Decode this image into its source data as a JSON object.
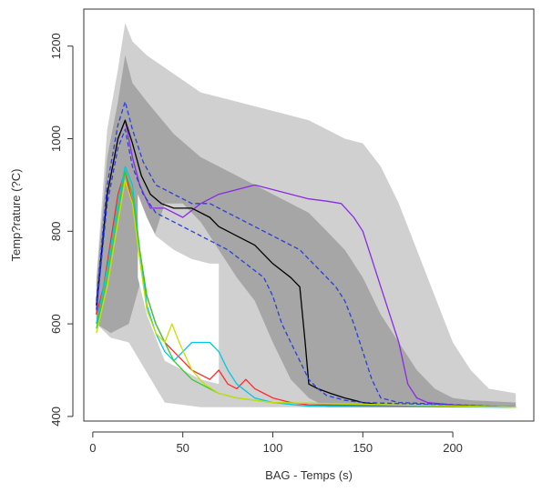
{
  "chart_data": {
    "type": "line",
    "title": "",
    "xlabel": "BAG - Temps (s)",
    "ylabel": "Temp?rature (?C)",
    "xlim": [
      -5,
      245
    ],
    "ylim": [
      390,
      1280
    ],
    "x_ticks": [
      0,
      50,
      100,
      150,
      200
    ],
    "y_ticks": [
      400,
      600,
      800,
      1000,
      1200
    ],
    "x_tick_labels": [
      "0",
      "50",
      "100",
      "150",
      "200"
    ],
    "y_tick_labels": [
      "400",
      "600",
      "800",
      "1000",
      "1200"
    ],
    "grid": false,
    "legend": "none",
    "bands": [
      {
        "color": "#d0d0d0",
        "upper": [
          [
            2,
            700
          ],
          [
            8,
            1020
          ],
          [
            14,
            1150
          ],
          [
            18,
            1250
          ],
          [
            22,
            1210
          ],
          [
            30,
            1180
          ],
          [
            45,
            1140
          ],
          [
            60,
            1100
          ],
          [
            80,
            1080
          ],
          [
            100,
            1060
          ],
          [
            120,
            1040
          ],
          [
            140,
            1000
          ],
          [
            150,
            990
          ],
          [
            160,
            940
          ],
          [
            170,
            860
          ],
          [
            180,
            760
          ],
          [
            190,
            660
          ],
          [
            200,
            560
          ],
          [
            210,
            500
          ],
          [
            220,
            460
          ],
          [
            235,
            450
          ]
        ],
        "lower": [
          [
            235,
            420
          ],
          [
            220,
            420
          ],
          [
            200,
            420
          ],
          [
            180,
            420
          ],
          [
            160,
            420
          ],
          [
            150,
            420
          ],
          [
            140,
            420
          ],
          [
            130,
            420
          ],
          [
            120,
            420
          ],
          [
            110,
            420
          ],
          [
            100,
            420
          ],
          [
            80,
            420
          ],
          [
            60,
            420
          ],
          [
            40,
            430
          ],
          [
            20,
            560
          ],
          [
            10,
            570
          ],
          [
            2,
            600
          ]
        ]
      },
      {
        "color": "#a6a6a6",
        "upper": [
          [
            2,
            690
          ],
          [
            8,
            960
          ],
          [
            14,
            1080
          ],
          [
            18,
            1180
          ],
          [
            22,
            1120
          ],
          [
            30,
            1080
          ],
          [
            45,
            1010
          ],
          [
            60,
            960
          ],
          [
            80,
            920
          ],
          [
            100,
            880
          ],
          [
            120,
            840
          ],
          [
            130,
            800
          ],
          [
            140,
            760
          ],
          [
            150,
            700
          ],
          [
            160,
            620
          ],
          [
            170,
            560
          ],
          [
            180,
            500
          ],
          [
            190,
            460
          ],
          [
            200,
            440
          ],
          [
            210,
            435
          ],
          [
            235,
            430
          ]
        ],
        "lower": [
          [
            235,
            420
          ],
          [
            210,
            420
          ],
          [
            190,
            420
          ],
          [
            170,
            420
          ],
          [
            150,
            420
          ],
          [
            130,
            420
          ],
          [
            120,
            440
          ],
          [
            110,
            480
          ],
          [
            100,
            560
          ],
          [
            90,
            650
          ],
          [
            80,
            700
          ],
          [
            70,
            760
          ],
          [
            60,
            820
          ],
          [
            50,
            860
          ],
          [
            40,
            860
          ],
          [
            30,
            740
          ],
          [
            20,
            600
          ],
          [
            10,
            580
          ],
          [
            2,
            600
          ]
        ]
      },
      {
        "color": "#ffffff",
        "upper": [
          [
            25,
            880
          ],
          [
            30,
            830
          ],
          [
            35,
            790
          ],
          [
            45,
            760
          ],
          [
            55,
            740
          ],
          [
            65,
            730
          ],
          [
            70,
            730
          ]
        ],
        "lower": [
          [
            70,
            470
          ],
          [
            60,
            480
          ],
          [
            50,
            500
          ],
          [
            40,
            520
          ],
          [
            30,
            620
          ],
          [
            25,
            700
          ]
        ]
      }
    ],
    "series": [
      {
        "color": "#8a2be2",
        "dash": "",
        "points": [
          [
            2,
            620
          ],
          [
            8,
            880
          ],
          [
            14,
            1000
          ],
          [
            18,
            1040
          ],
          [
            22,
            960
          ],
          [
            26,
            900
          ],
          [
            32,
            850
          ],
          [
            40,
            850
          ],
          [
            50,
            830
          ],
          [
            60,
            860
          ],
          [
            70,
            880
          ],
          [
            80,
            890
          ],
          [
            90,
            900
          ],
          [
            100,
            890
          ],
          [
            110,
            880
          ],
          [
            120,
            870
          ],
          [
            130,
            865
          ],
          [
            138,
            860
          ],
          [
            145,
            830
          ],
          [
            150,
            800
          ],
          [
            155,
            740
          ],
          [
            160,
            680
          ],
          [
            165,
            620
          ],
          [
            170,
            560
          ],
          [
            175,
            470
          ],
          [
            180,
            440
          ],
          [
            186,
            430
          ],
          [
            200,
            425
          ],
          [
            235,
            420
          ]
        ]
      },
      {
        "color": "#000000",
        "dash": "",
        "points": [
          [
            2,
            640
          ],
          [
            8,
            880
          ],
          [
            14,
            1000
          ],
          [
            18,
            1040
          ],
          [
            22,
            990
          ],
          [
            27,
            920
          ],
          [
            32,
            880
          ],
          [
            38,
            860
          ],
          [
            45,
            850
          ],
          [
            55,
            850
          ],
          [
            65,
            830
          ],
          [
            70,
            810
          ],
          [
            80,
            790
          ],
          [
            90,
            770
          ],
          [
            100,
            730
          ],
          [
            110,
            700
          ],
          [
            115,
            680
          ],
          [
            118,
            560
          ],
          [
            120,
            470
          ],
          [
            125,
            460
          ],
          [
            132,
            450
          ],
          [
            140,
            440
          ],
          [
            150,
            430
          ],
          [
            160,
            425
          ],
          [
            235,
            420
          ]
        ]
      },
      {
        "color": "#2a3fd6",
        "dash": "5,3",
        "points": [
          [
            2,
            650
          ],
          [
            8,
            900
          ],
          [
            14,
            1030
          ],
          [
            18,
            1080
          ],
          [
            22,
            1020
          ],
          [
            28,
            950
          ],
          [
            35,
            900
          ],
          [
            45,
            880
          ],
          [
            55,
            860
          ],
          [
            65,
            860
          ],
          [
            75,
            840
          ],
          [
            85,
            820
          ],
          [
            95,
            800
          ],
          [
            105,
            780
          ],
          [
            115,
            760
          ],
          [
            120,
            740
          ],
          [
            125,
            720
          ],
          [
            130,
            700
          ],
          [
            135,
            680
          ],
          [
            140,
            650
          ],
          [
            145,
            600
          ],
          [
            150,
            540
          ],
          [
            155,
            480
          ],
          [
            160,
            440
          ],
          [
            170,
            430
          ],
          [
            235,
            420
          ]
        ]
      },
      {
        "color": "#2a3fd6",
        "dash": "5,3",
        "points": [
          [
            2,
            630
          ],
          [
            8,
            860
          ],
          [
            14,
            980
          ],
          [
            18,
            1020
          ],
          [
            22,
            940
          ],
          [
            28,
            880
          ],
          [
            35,
            840
          ],
          [
            45,
            820
          ],
          [
            55,
            800
          ],
          [
            65,
            780
          ],
          [
            75,
            760
          ],
          [
            85,
            730
          ],
          [
            95,
            700
          ],
          [
            100,
            660
          ],
          [
            105,
            600
          ],
          [
            110,
            560
          ],
          [
            115,
            520
          ],
          [
            120,
            480
          ],
          [
            125,
            460
          ],
          [
            130,
            445
          ],
          [
            140,
            435
          ],
          [
            150,
            430
          ],
          [
            235,
            420
          ]
        ]
      },
      {
        "color": "#ff2b2b",
        "dash": "",
        "points": [
          [
            2,
            620
          ],
          [
            6,
            680
          ],
          [
            10,
            780
          ],
          [
            14,
            880
          ],
          [
            18,
            930
          ],
          [
            22,
            860
          ],
          [
            26,
            760
          ],
          [
            30,
            660
          ],
          [
            35,
            600
          ],
          [
            40,
            560
          ],
          [
            45,
            540
          ],
          [
            50,
            520
          ],
          [
            55,
            500
          ],
          [
            60,
            490
          ],
          [
            65,
            480
          ],
          [
            70,
            500
          ],
          [
            75,
            470
          ],
          [
            80,
            460
          ],
          [
            85,
            480
          ],
          [
            90,
            460
          ],
          [
            95,
            450
          ],
          [
            100,
            440
          ],
          [
            110,
            430
          ],
          [
            120,
            425
          ],
          [
            235,
            420
          ]
        ]
      },
      {
        "color": "#00c8e0",
        "dash": "",
        "points": [
          [
            2,
            600
          ],
          [
            8,
            720
          ],
          [
            14,
            860
          ],
          [
            18,
            940
          ],
          [
            22,
            900
          ],
          [
            26,
            760
          ],
          [
            30,
            640
          ],
          [
            35,
            580
          ],
          [
            40,
            540
          ],
          [
            45,
            520
          ],
          [
            50,
            540
          ],
          [
            55,
            560
          ],
          [
            60,
            560
          ],
          [
            65,
            560
          ],
          [
            70,
            540
          ],
          [
            75,
            500
          ],
          [
            80,
            470
          ],
          [
            90,
            440
          ],
          [
            100,
            430
          ],
          [
            120,
            422
          ],
          [
            235,
            420
          ]
        ]
      },
      {
        "color": "#33cc33",
        "dash": "",
        "points": [
          [
            2,
            590
          ],
          [
            8,
            700
          ],
          [
            14,
            840
          ],
          [
            18,
            930
          ],
          [
            22,
            880
          ],
          [
            26,
            760
          ],
          [
            30,
            660
          ],
          [
            35,
            600
          ],
          [
            40,
            560
          ],
          [
            45,
            520
          ],
          [
            50,
            500
          ],
          [
            55,
            480
          ],
          [
            60,
            470
          ],
          [
            70,
            450
          ],
          [
            80,
            440
          ],
          [
            100,
            430
          ],
          [
            235,
            420
          ]
        ]
      },
      {
        "color": "#c8e000",
        "dash": "",
        "points": [
          [
            2,
            580
          ],
          [
            8,
            680
          ],
          [
            14,
            820
          ],
          [
            18,
            910
          ],
          [
            22,
            860
          ],
          [
            26,
            740
          ],
          [
            30,
            630
          ],
          [
            35,
            580
          ],
          [
            40,
            560
          ],
          [
            44,
            600
          ],
          [
            48,
            560
          ],
          [
            55,
            500
          ],
          [
            62,
            470
          ],
          [
            70,
            450
          ],
          [
            80,
            440
          ],
          [
            100,
            430
          ],
          [
            235,
            420
          ]
        ]
      }
    ]
  }
}
